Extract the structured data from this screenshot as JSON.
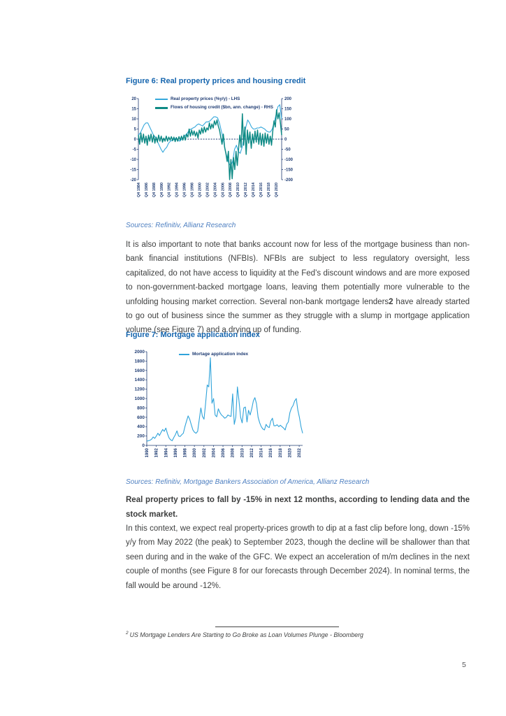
{
  "page": {
    "number": "5"
  },
  "colors": {
    "accent_blue": "#1565ae",
    "source_blue": "#4f80c1",
    "axis_navy": "#1f3c73",
    "line_light_blue": "#35a8dc",
    "line_teal": "#0e8a85",
    "body_text": "#3f4040"
  },
  "figure6": {
    "sources": "Sources: Refinitiv, Allianz Research"
  },
  "figure7": {
    "sources": "Sources: Refinitiv, Mortgage Bankers Association of America, Allianz Research"
  },
  "paragraph1": {
    "before": "It is also important to note that banks account now for less of the mortgage business than non-bank financial institutions (NFBIs). NFBIs are subject to less regulatory oversight, less capitalized, do not have access to liquidity at the Fed’s discount windows and are more exposed to non-government-backed mortgage loans, leaving them potentially more vulnerable to the unfolding housing market correction. Several non-bank mortgage lenders",
    "footnote_marker": "2",
    "after": " have already started to go out of business since the summer as they struggle with a slump in mortgage application volume (see Figure 7) and a drying up of funding."
  },
  "heading": "Real property prices to fall by -15% in next 12 months, according to lending data and the stock market.",
  "paragraph2": "In this context, we expect real property-prices growth to dip at a fast clip before long, down -15% y/y from May 2022 (the peak) to September 2023, though the decline will be shallower than that seen during and in the wake of the GFC. We expect an acceleration of m/m declines in the next couple of months (see Figure 8 for our forecasts through December 2024). In nominal terms, the fall would be around -12%.",
  "footnote": {
    "marker": "2",
    "text": "US Mortgage Lenders Are Starting to Go Broke as Loan Volumes Plunge - Bloomberg"
  },
  "chart_data": [
    {
      "type": "line",
      "title": "Figure 6: Real property prices and housing credit",
      "x_tick_labels": [
        "Q4 1984",
        "Q4 1986",
        "Q4 1988",
        "Q4 1990",
        "Q4 1992",
        "Q4 1994",
        "Q4 1996",
        "Q4 1998",
        "Q4 2000",
        "Q4 2002",
        "Q4 2004",
        "Q4 2006",
        "Q4 2008",
        "Q4 2010",
        "Q4 2012",
        "Q4 2014",
        "Q4 2016",
        "Q4 2018",
        "Q4 2020"
      ],
      "x_label_span": 0.96,
      "y_left": {
        "min": -20,
        "max": 20,
        "ticks": [
          20,
          15,
          10,
          5,
          0,
          -5,
          -10,
          -15,
          -20
        ]
      },
      "y_right": {
        "min": -200,
        "max": 200,
        "ticks": [
          200,
          150,
          100,
          50,
          0,
          -50,
          -100,
          -150,
          -200
        ]
      },
      "zero_line": "dashed",
      "legend_position": "top-inside",
      "series": [
        {
          "name": "Real property prices (%y/y) - LHS",
          "axis": "left",
          "color": "#35a8dc",
          "width": 1.1,
          "values": [
            2,
            3,
            5,
            7,
            8,
            8,
            6,
            4,
            2,
            1,
            -1,
            -3,
            -5,
            -6.5,
            -5,
            -4,
            -2,
            -1,
            -0.5,
            0,
            0.5,
            -0.5,
            -1,
            0,
            1,
            2,
            3,
            4.5,
            5,
            5.5,
            6,
            7,
            7.5,
            7,
            6.5,
            7.5,
            8.5,
            8.5,
            9,
            10,
            11,
            11,
            10.5,
            8,
            4,
            0,
            -5,
            -9,
            -12,
            -13,
            -11,
            -5,
            -3,
            -6,
            -7,
            -4,
            1,
            6,
            9.5,
            8,
            6,
            5,
            5,
            5.5,
            5.5,
            6,
            5.5,
            5,
            4,
            3.5,
            3.5,
            5,
            8,
            12,
            16,
            17,
            10
          ]
        },
        {
          "name": "Flows of housing credit ($bn, ann. change) - RHS",
          "axis": "right",
          "color": "#0e8a85",
          "width": 1.5,
          "values": [
            20,
            -25,
            30,
            -15,
            25,
            -20,
            15,
            -30,
            20,
            -10,
            25,
            -15,
            20,
            -20,
            10,
            -15,
            20,
            -10,
            15,
            -15,
            5,
            -10,
            15,
            -10,
            10,
            -5,
            12,
            -8,
            10,
            -12,
            8,
            -10,
            12,
            -5,
            15,
            -5,
            20,
            -5,
            25,
            10,
            50,
            15,
            45,
            20,
            40,
            15,
            35,
            5,
            45,
            25,
            55,
            30,
            60,
            35,
            55,
            45,
            80,
            50,
            75,
            55,
            90,
            70,
            95,
            65,
            45,
            10,
            -25,
            25,
            -40,
            -70,
            -110,
            -60,
            -200,
            -100,
            -195,
            -90,
            -150,
            -60,
            -130,
            -50,
            20,
            -40,
            125,
            -30,
            60,
            -75,
            45,
            -20,
            35,
            -45,
            25,
            -20,
            40,
            -15,
            45,
            -25,
            30,
            -30,
            25,
            -35,
            30,
            -20,
            25,
            -25,
            15,
            -30,
            40,
            90,
            60,
            145,
            100,
            130,
            80,
            20
          ]
        }
      ]
    },
    {
      "type": "line",
      "title": "Figure 7: Mortgage application index",
      "x_tick_labels": [
        "1990",
        "1992",
        "1994",
        "1996",
        "1998",
        "2000",
        "2002",
        "2004",
        "2006",
        "2008",
        "2010",
        "2012",
        "2014",
        "2016",
        "2018",
        "2020",
        "2022"
      ],
      "x_label_span": 0.978,
      "ylim": [
        0,
        2000
      ],
      "y_ticks": [
        2000,
        1800,
        1600,
        1400,
        1200,
        1000,
        800,
        600,
        400,
        200,
        0
      ],
      "legend_position": "top-inside",
      "series": [
        {
          "name": "Mortage application index",
          "color": "#2fa3da",
          "width": 1.1,
          "values": [
            90,
            100,
            110,
            130,
            180,
            150,
            200,
            260,
            210,
            280,
            340,
            300,
            370,
            250,
            160,
            120,
            100,
            170,
            230,
            310,
            200,
            190,
            230,
            260,
            400,
            520,
            630,
            560,
            440,
            330,
            280,
            260,
            300,
            550,
            800,
            620,
            560,
            900,
            1290,
            1250,
            1870,
            900,
            1000,
            650,
            610,
            780,
            700,
            650,
            620,
            580,
            600,
            650,
            630,
            620,
            1100,
            450,
            600,
            1250,
            950,
            600,
            480,
            800,
            820,
            500,
            750,
            650,
            780,
            950,
            1020,
            890,
            600,
            480,
            400,
            350,
            330,
            450,
            400,
            380,
            520,
            580,
            420,
            420,
            440,
            400,
            430,
            400,
            370,
            330,
            450,
            500,
            700,
            800,
            850,
            950,
            1000,
            750,
            600,
            400,
            260
          ]
        }
      ]
    }
  ]
}
